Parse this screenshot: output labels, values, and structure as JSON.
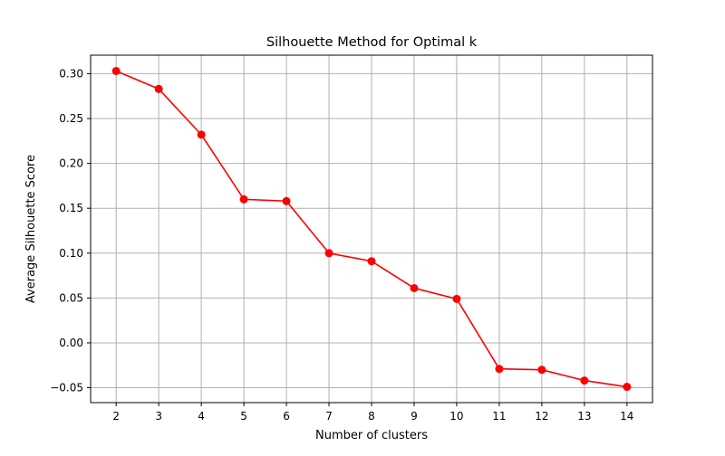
{
  "chart_data": {
    "type": "line",
    "title": "Silhouette Method for Optimal k",
    "xlabel": "Number of clusters",
    "ylabel": "Average Silhouette Score",
    "x": [
      2,
      3,
      4,
      5,
      6,
      7,
      8,
      9,
      10,
      11,
      12,
      13,
      14
    ],
    "series": [
      {
        "values": [
          0.303,
          0.283,
          0.232,
          0.16,
          0.158,
          0.1,
          0.091,
          0.061,
          0.049,
          -0.029,
          -0.03,
          -0.042,
          -0.049
        ]
      }
    ],
    "xticks": [
      "2",
      "3",
      "4",
      "5",
      "6",
      "7",
      "8",
      "9",
      "10",
      "11",
      "12",
      "13",
      "14"
    ],
    "yticks": [
      "−0.05",
      "0.00",
      "0.05",
      "0.10",
      "0.15",
      "0.20",
      "0.25",
      "0.30"
    ],
    "ytick_values": [
      -0.05,
      0,
      0.05,
      0.1,
      0.15,
      0.2,
      0.25,
      0.3
    ],
    "xlim": [
      1.4,
      14.6
    ],
    "ylim": [
      -0.0666,
      0.3206
    ],
    "grid": true,
    "line_color": "#ff0000",
    "marker": "circle",
    "grid_color": "#b0b0b0"
  }
}
